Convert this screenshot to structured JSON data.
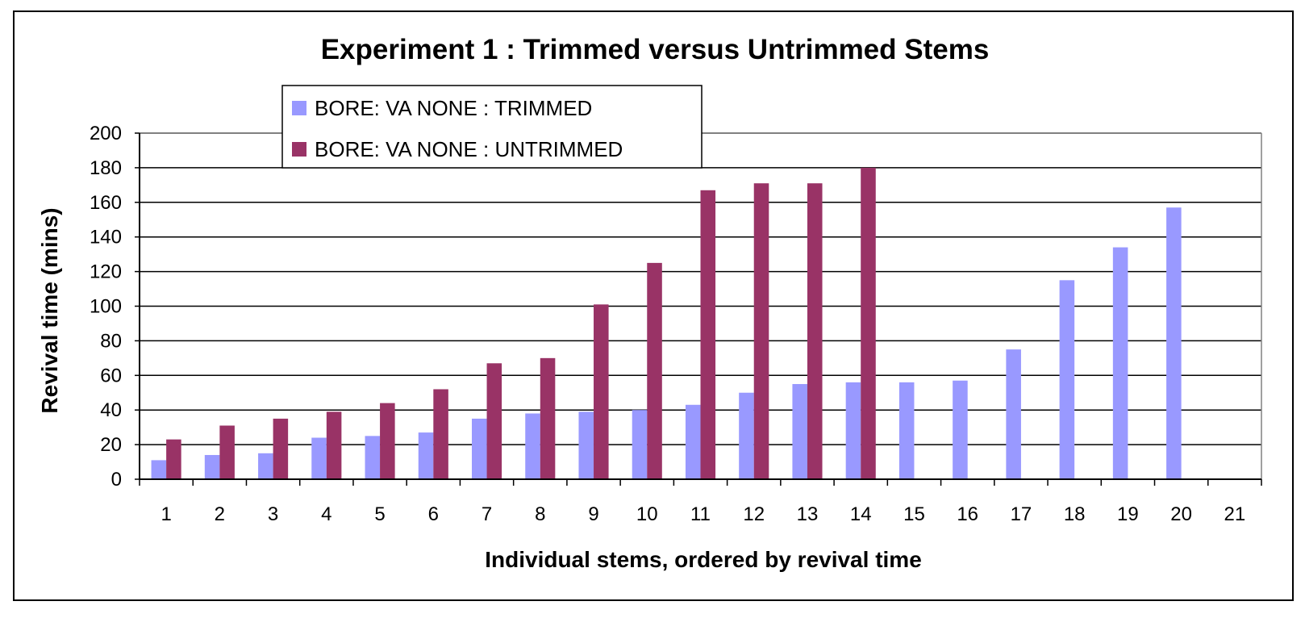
{
  "chart_data": {
    "type": "bar",
    "title": "Experiment 1 : Trimmed versus Untrimmed Stems",
    "xlabel": "Individual stems, ordered by revival time",
    "ylabel": "Revival time (mins)",
    "ylim": [
      0,
      200
    ],
    "yticks": [
      "0",
      "20",
      "40",
      "60",
      "80",
      "100",
      "120",
      "140",
      "160",
      "180",
      "200"
    ],
    "categories": [
      "1",
      "2",
      "3",
      "4",
      "5",
      "6",
      "7",
      "8",
      "9",
      "10",
      "11",
      "12",
      "13",
      "14",
      "15",
      "16",
      "17",
      "18",
      "19",
      "20",
      "21"
    ],
    "grid": true,
    "legend_position": "top-left",
    "series": [
      {
        "name": "BORE: VA NONE : TRIMMED",
        "color": "#9999ff",
        "values": [
          11,
          14,
          15,
          24,
          25,
          27,
          35,
          38,
          39,
          40,
          43,
          50,
          55,
          56,
          56,
          57,
          75,
          115,
          134,
          157,
          null
        ]
      },
      {
        "name": "BORE: VA NONE : UNTRIMMED",
        "color": "#993366",
        "values": [
          23,
          31,
          35,
          39,
          44,
          52,
          67,
          70,
          101,
          125,
          167,
          171,
          171,
          180,
          null,
          null,
          null,
          null,
          null,
          null,
          null
        ]
      }
    ]
  }
}
